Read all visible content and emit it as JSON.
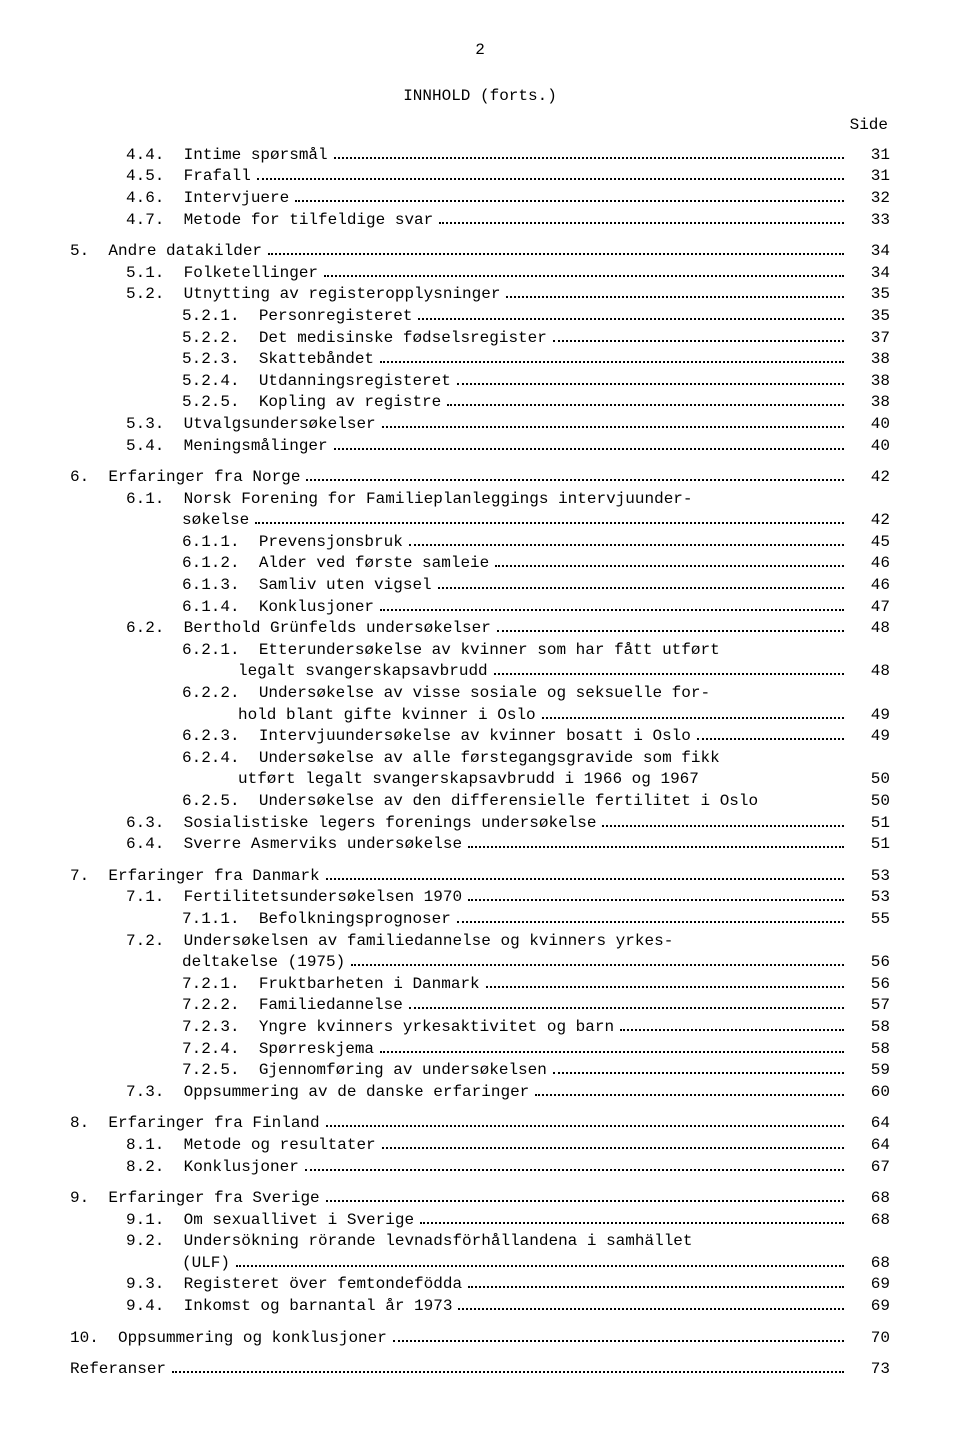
{
  "page_number": "2",
  "title": "INNHOLD (forts.)",
  "side_label": "Side",
  "entries": [
    {
      "indent": 1,
      "num": "4.4.",
      "text": "Intime spørsmål",
      "page": "31"
    },
    {
      "indent": 1,
      "num": "4.5.",
      "text": "Frafall",
      "page": "31"
    },
    {
      "indent": 1,
      "num": "4.6.",
      "text": "Intervjuere",
      "page": "32"
    },
    {
      "indent": 1,
      "num": "4.7.",
      "text": "Metode for tilfeldige svar",
      "page": "33"
    },
    {
      "gap": true
    },
    {
      "indent": 0,
      "num": "5.",
      "text": "Andre datakilder",
      "page": "34"
    },
    {
      "indent": 1,
      "num": "5.1.",
      "text": "Folketellinger",
      "page": "34"
    },
    {
      "indent": 1,
      "num": "5.2.",
      "text": "Utnytting av registeropplysninger",
      "page": "35"
    },
    {
      "indent": 2,
      "num": "5.2.1.",
      "text": "Personregisteret",
      "page": "35"
    },
    {
      "indent": 2,
      "num": "5.2.2.",
      "text": "Det medisinske fødselsregister",
      "page": "37"
    },
    {
      "indent": 2,
      "num": "5.2.3.",
      "text": "Skattebåndet",
      "page": "38"
    },
    {
      "indent": 2,
      "num": "5.2.4.",
      "text": "Utdanningsregisteret",
      "page": "38"
    },
    {
      "indent": 2,
      "num": "5.2.5.",
      "text": "Kopling av registre",
      "page": "38"
    },
    {
      "indent": 1,
      "num": "5.3.",
      "text": "Utvalgsundersøkelser",
      "page": "40"
    },
    {
      "indent": 1,
      "num": "5.4.",
      "text": "Meningsmålinger",
      "page": "40"
    },
    {
      "gap": true
    },
    {
      "indent": 0,
      "num": "6.",
      "text": "Erfaringer fra Norge",
      "page": "42"
    },
    {
      "indent": 1,
      "num": "6.1.",
      "text": "Norsk Forening for Familieplanleggings intervjuunder-",
      "nodots": true,
      "page": ""
    },
    {
      "indent": 2,
      "num": "",
      "text": "søkelse",
      "page": "42"
    },
    {
      "indent": 2,
      "num": "6.1.1.",
      "text": "Prevensjonsbruk",
      "page": "45"
    },
    {
      "indent": 2,
      "num": "6.1.2.",
      "text": "Alder ved første samleie",
      "page": "46"
    },
    {
      "indent": 2,
      "num": "6.1.3.",
      "text": "Samliv uten vigsel",
      "page": "46"
    },
    {
      "indent": 2,
      "num": "6.1.4.",
      "text": "Konklusjoner",
      "page": "47"
    },
    {
      "indent": 1,
      "num": "6.2.",
      "text": "Berthold Grünfelds undersøkelser",
      "page": "48"
    },
    {
      "indent": 2,
      "num": "6.2.1.",
      "text": "Etterundersøkelse av kvinner som har fått utført",
      "nodots": true,
      "page": ""
    },
    {
      "indent": 3,
      "num": "",
      "text": "legalt svangerskapsavbrudd",
      "page": "48"
    },
    {
      "indent": 2,
      "num": "6.2.2.",
      "text": "Undersøkelse av visse sosiale og seksuelle for-",
      "nodots": true,
      "page": ""
    },
    {
      "indent": 3,
      "num": "",
      "text": "hold blant gifte kvinner i Oslo",
      "page": "49"
    },
    {
      "indent": 2,
      "num": "6.2.3.",
      "text": "Intervjuundersøkelse av kvinner bosatt i Oslo",
      "page": "49"
    },
    {
      "indent": 2,
      "num": "6.2.4.",
      "text": "Undersøkelse av alle førstegangsgravide som fikk",
      "nodots": true,
      "page": ""
    },
    {
      "indent": 3,
      "num": "",
      "text": "utført legalt svangerskapsavbrudd i 1966 og 1967",
      "nodots": true,
      "page": "50"
    },
    {
      "indent": 2,
      "num": "6.2.5.",
      "text": "Undersøkelse av den differensielle fertilitet i Oslo",
      "nodots": true,
      "page": "50"
    },
    {
      "indent": 1,
      "num": "6.3.",
      "text": "Sosialistiske legers forenings undersøkelse",
      "page": "51"
    },
    {
      "indent": 1,
      "num": "6.4.",
      "text": "Sverre Asmerviks undersøkelse",
      "page": "51"
    },
    {
      "gap": true
    },
    {
      "indent": 0,
      "num": "7.",
      "text": "Erfaringer fra Danmark",
      "page": "53"
    },
    {
      "indent": 1,
      "num": "7.1.",
      "text": "Fertilitetsundersøkelsen 1970",
      "page": "53"
    },
    {
      "indent": 2,
      "num": "7.1.1.",
      "text": "Befolkningsprognoser",
      "page": "55"
    },
    {
      "indent": 1,
      "num": "7.2.",
      "text": "Undersøkelsen av familiedannelse og kvinners yrkes-",
      "nodots": true,
      "page": ""
    },
    {
      "indent": 2,
      "num": "",
      "text": "deltakelse (1975)",
      "page": "56"
    },
    {
      "indent": 2,
      "num": "7.2.1.",
      "text": "Fruktbarheten i Danmark",
      "page": "56"
    },
    {
      "indent": 2,
      "num": "7.2.2.",
      "text": "Familiedannelse",
      "page": "57"
    },
    {
      "indent": 2,
      "num": "7.2.3.",
      "text": "Yngre kvinners yrkesaktivitet og barn",
      "page": "58"
    },
    {
      "indent": 2,
      "num": "7.2.4.",
      "text": "Spørreskjema",
      "page": "58"
    },
    {
      "indent": 2,
      "num": "7.2.5.",
      "text": "Gjennomføring av undersøkelsen",
      "page": "59"
    },
    {
      "indent": 1,
      "num": "7.3.",
      "text": "Oppsummering av de danske erfaringer",
      "page": "60"
    },
    {
      "gap": true
    },
    {
      "indent": 0,
      "num": "8.",
      "text": "Erfaringer fra Finland",
      "page": "64"
    },
    {
      "indent": 1,
      "num": "8.1.",
      "text": "Metode og resultater",
      "page": "64"
    },
    {
      "indent": 1,
      "num": "8.2.",
      "text": "Konklusjoner",
      "page": "67"
    },
    {
      "gap": true
    },
    {
      "indent": 0,
      "num": "9.",
      "text": "Erfaringer fra Sverige",
      "page": "68"
    },
    {
      "indent": 1,
      "num": "9.1.",
      "text": "Om sexuallivet i Sverige",
      "page": "68"
    },
    {
      "indent": 1,
      "num": "9.2.",
      "text": "Undersökning rörande levnadsförhållandena i samhället",
      "nodots": true,
      "page": ""
    },
    {
      "indent": 2,
      "num": "",
      "text": "(ULF)",
      "page": "68"
    },
    {
      "indent": 1,
      "num": "9.3.",
      "text": "Registeret över femtondefödda",
      "page": "69"
    },
    {
      "indent": 1,
      "num": "9.4.",
      "text": "Inkomst og barnantal år 1973",
      "page": "69"
    },
    {
      "gap": true
    },
    {
      "indent": 0,
      "num": "10.",
      "text": "Oppsummering og konklusjoner",
      "page": "70"
    },
    {
      "gap": true
    },
    {
      "indent": 0,
      "num": "",
      "text": "Referanser",
      "page": "73",
      "noindentnum": true
    }
  ]
}
